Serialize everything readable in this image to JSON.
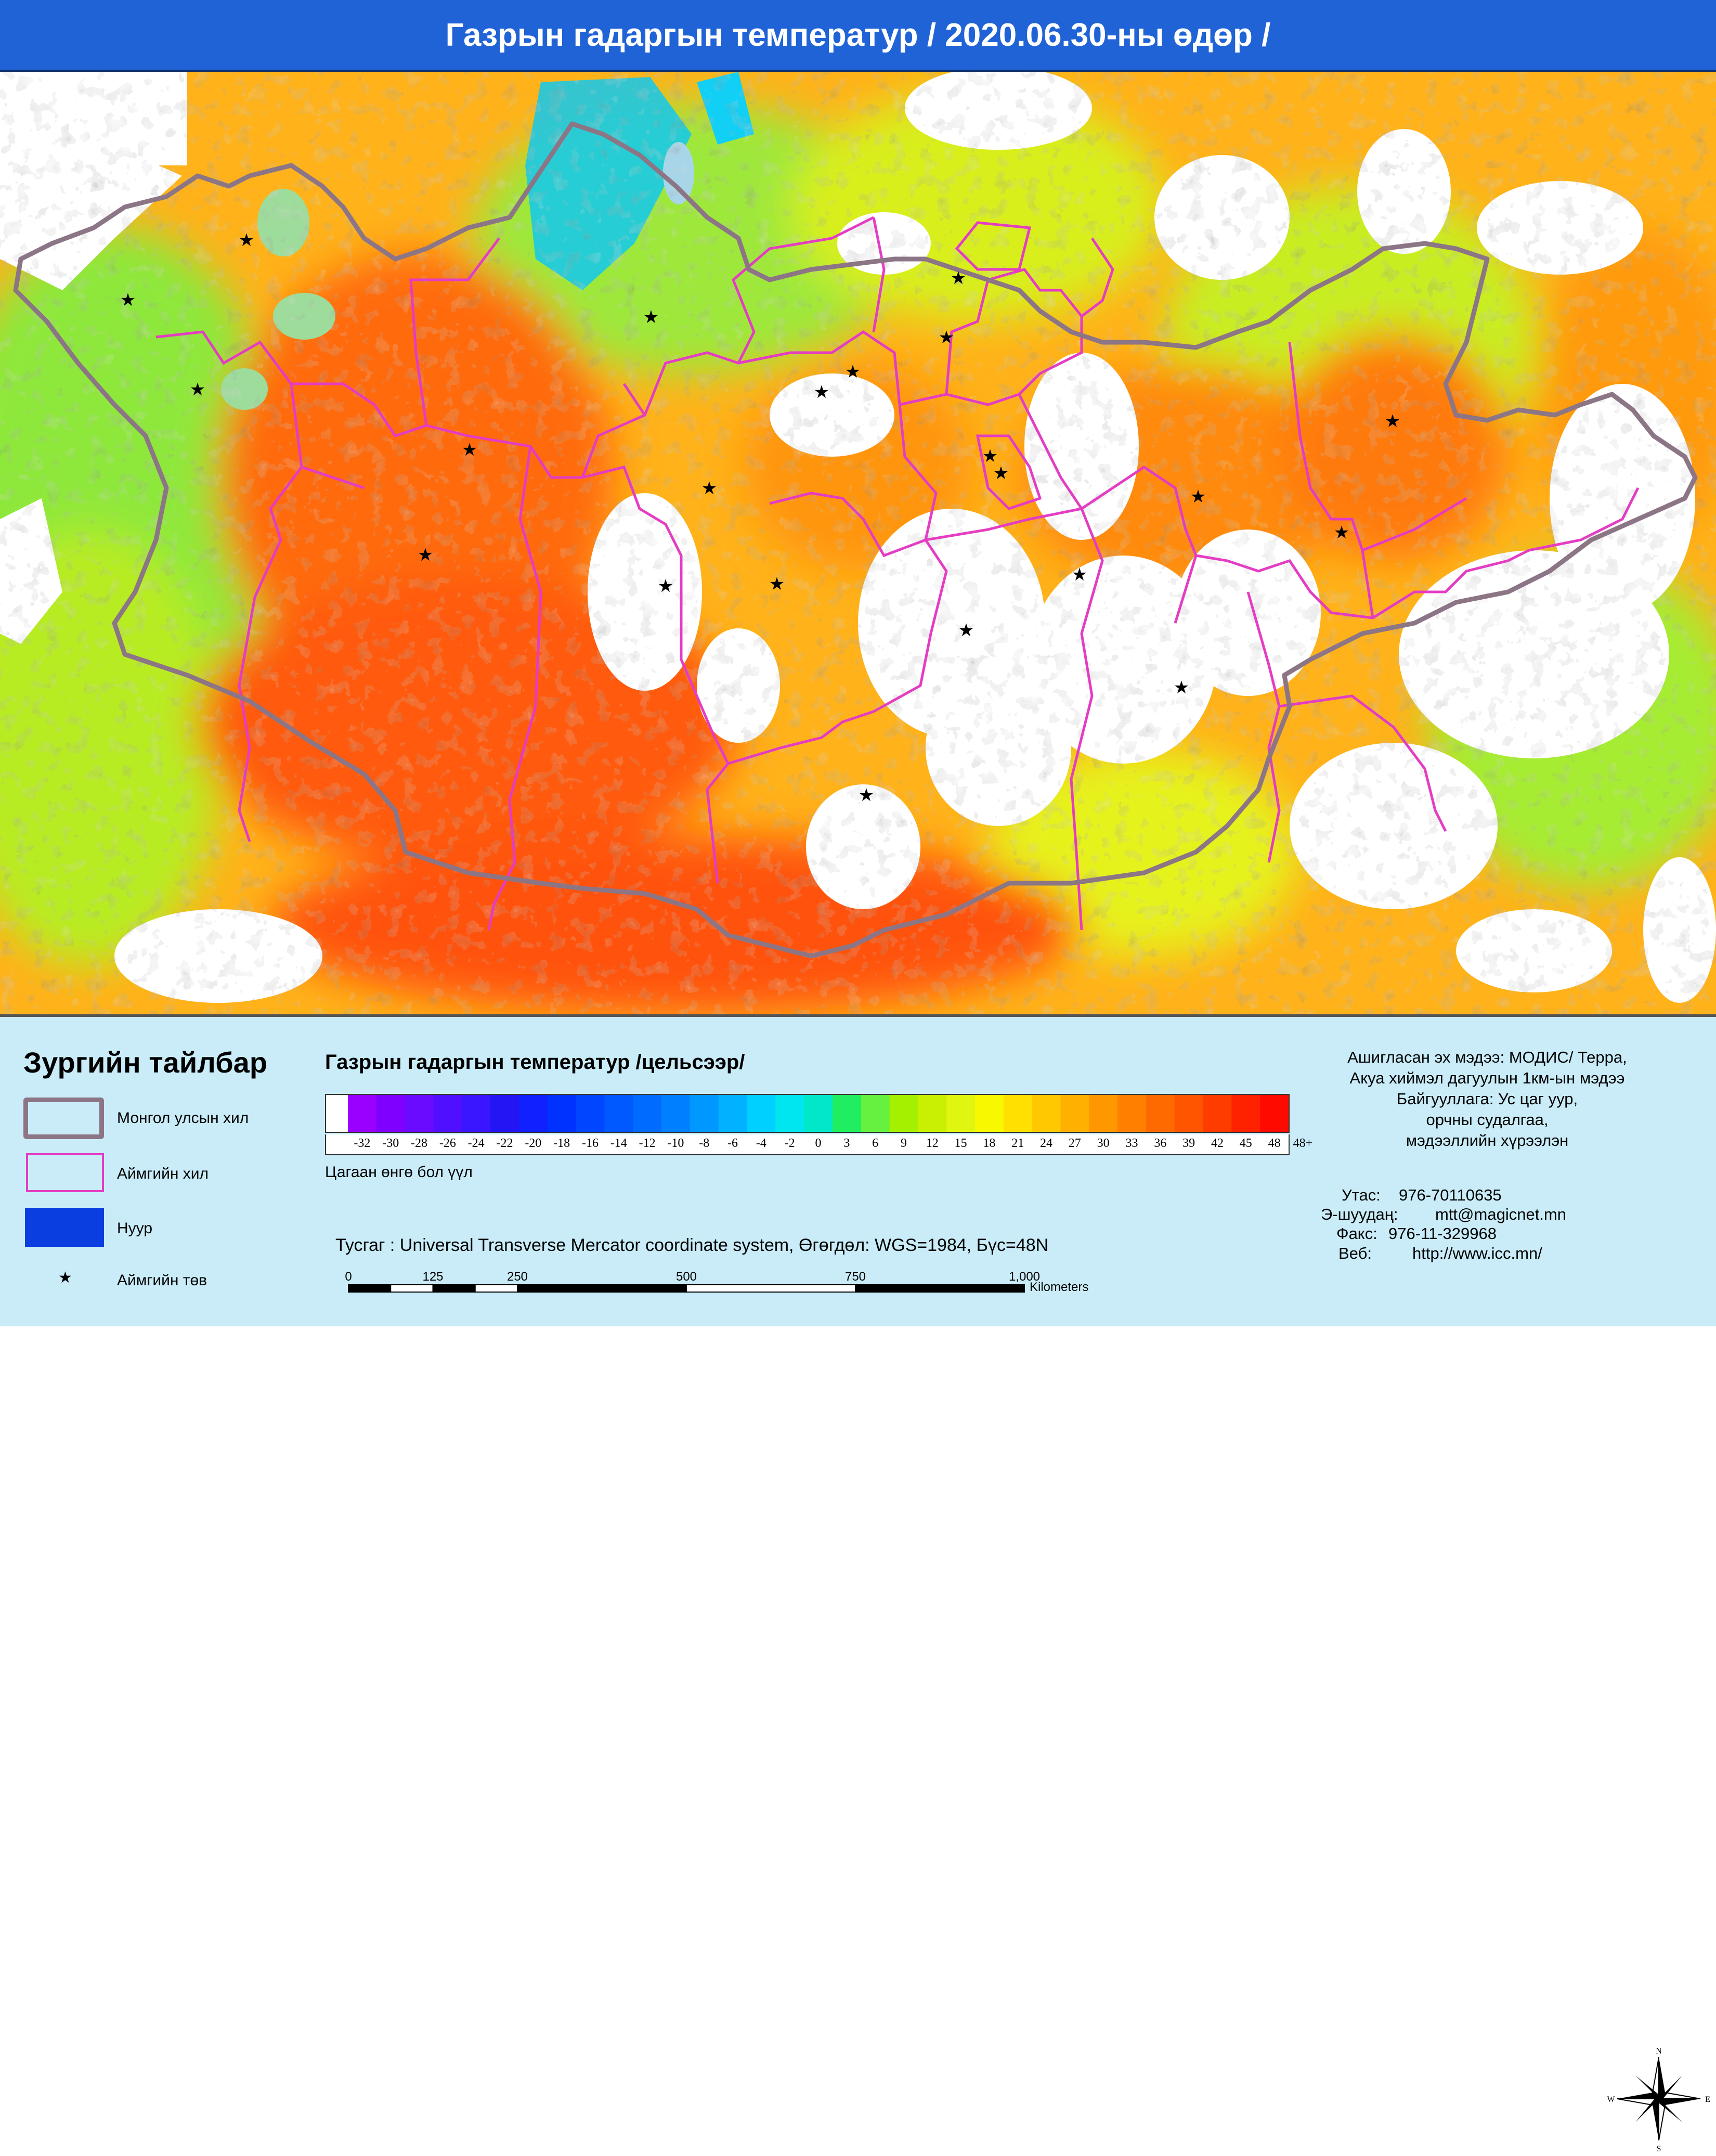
{
  "title": "Газрын гадаргын температур / 2020.06.30-ны өдөр /",
  "legend": {
    "heading": "Зургийн тайлбар",
    "items": [
      {
        "label": "Монгол улсын хил",
        "color": "#8c7585"
      },
      {
        "label": "Аймгийн хил",
        "color": "#e43cc3"
      },
      {
        "label": "Нуур",
        "color": "#0a3ee0"
      },
      {
        "label": "Аймгийн төв",
        "symbol": "★"
      }
    ]
  },
  "scale": {
    "title": "Газрын гадаргын температур /цельсээр/",
    "labels": [
      "-32",
      "-30",
      "-28",
      "-26",
      "-24",
      "-22",
      "-20",
      "-18",
      "-16",
      "-14",
      "-12",
      "-10",
      "-8",
      "-6",
      "-4",
      "-2",
      "0",
      "3",
      "6",
      "9",
      "12",
      "15",
      "18",
      "21",
      "24",
      "27",
      "30",
      "33",
      "36",
      "39",
      "42",
      "45",
      "48",
      "48+"
    ],
    "colors": [
      "#9900ff",
      "#7f00ff",
      "#6a0aff",
      "#5010ff",
      "#3a15ff",
      "#2415f5",
      "#1020ff",
      "#0032ff",
      "#0045ff",
      "#0058ff",
      "#006cff",
      "#0080ff",
      "#0098ff",
      "#00b2ff",
      "#00d0ff",
      "#00e6f0",
      "#00e8c8",
      "#20ee60",
      "#66f040",
      "#a5f000",
      "#c8f000",
      "#e0f510",
      "#f8f800",
      "#ffe000",
      "#ffc800",
      "#ffb000",
      "#ff9800",
      "#ff8000",
      "#ff6a00",
      "#ff5500",
      "#ff3c00",
      "#ff2200",
      "#ff0a00"
    ],
    "white_note": "Цагаан өнгө бол үүл"
  },
  "projection": "Тусгаг : Universal Transverse Mercator coordinate system, Өгөгдөл: WGS=1984, Бүс=48N",
  "scalebar": {
    "ticks": [
      "0",
      "125",
      "250",
      "500",
      "750",
      "1,000"
    ],
    "unit": "Kilometers"
  },
  "source": {
    "lines": [
      "Ашигласан эх мэдээ: МОДИС/ Терра,",
      "Акуа хиймэл дагуулын 1км-ын мэдээ",
      "Байгууллага: Ус цаг уур,",
      "орчны судалгаа,",
      "мэдээллийн хүрээлэн"
    ]
  },
  "contact": {
    "phone_label": "Утас:",
    "phone": "976-70110635",
    "email_label": "Э-шуудаң:",
    "email": "mtt@magicnet.mn",
    "fax_label": "Факс:",
    "fax": "976-11-329968",
    "web_label": "Веб:",
    "web": "http://www.icc.mn/"
  },
  "compass": {
    "n": "N",
    "s": "S",
    "e": "E",
    "w": "W"
  },
  "map_symbols": {
    "aimag_center": "★"
  }
}
